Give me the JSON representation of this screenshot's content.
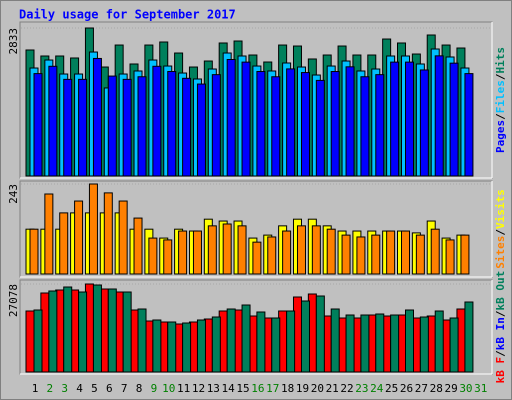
{
  "title": "Daily usage for September 2017",
  "legend_separator": "/",
  "chart_data": [
    {
      "type": "bar",
      "ylim": [
        0,
        2833
      ],
      "yticks": [
        2833
      ],
      "series": [
        {
          "name": "Hits",
          "color": "#00805c",
          "values": [
            2412,
            2297,
            2297,
            2259,
            2833,
            2086,
            2507,
            2144,
            2507,
            2565,
            2354,
            2086,
            2201,
            2546,
            2584,
            2316,
            2182,
            2507,
            2488,
            2240,
            2316,
            2488,
            2316,
            2316,
            2622,
            2546,
            2335,
            2699,
            2507,
            2450,
            null
          ]
        },
        {
          "name": "Files",
          "color": "#00c0ff",
          "values": [
            2067,
            2220,
            1952,
            1952,
            2373,
            1685,
            1952,
            2010,
            2220,
            2105,
            1971,
            1857,
            2048,
            2354,
            2297,
            2105,
            2010,
            2163,
            2086,
            1933,
            2105,
            2201,
            2010,
            2048,
            2297,
            2297,
            2144,
            2431,
            2278,
            2067,
            null
          ]
        },
        {
          "name": "Pages",
          "color": "#0000ff",
          "values": [
            1960,
            2100,
            1850,
            1850,
            2250,
            1913,
            1850,
            1900,
            2100,
            2000,
            1870,
            1760,
            1940,
            2230,
            2180,
            2000,
            1900,
            2050,
            1980,
            1830,
            2000,
            2090,
            1900,
            1940,
            2180,
            2180,
            2030,
            2300,
            2160,
            1960,
            null
          ]
        }
      ]
    },
    {
      "type": "bar",
      "ylim": [
        0,
        243
      ],
      "yticks": [
        243
      ],
      "series": [
        {
          "name": "Visits",
          "color": "#ffff00",
          "values": [
            121,
            121,
            121,
            165,
            165,
            165,
            165,
            121,
            121,
            97,
            121,
            116,
            148,
            143,
            143,
            97,
            105,
            130,
            148,
            148,
            130,
            116,
            116,
            116,
            116,
            116,
            111,
            143,
            97,
            105,
            null
          ]
        },
        {
          "name": "Sites",
          "color": "#ff8000",
          "values": [
            121,
            216,
            165,
            197,
            243,
            219,
            197,
            151,
            97,
            92,
            116,
            116,
            130,
            135,
            130,
            86,
            100,
            116,
            130,
            130,
            121,
            105,
            100,
            105,
            116,
            116,
            105,
            121,
            92,
            105,
            null
          ]
        }
      ]
    },
    {
      "type": "bar",
      "ylim": [
        0,
        27078
      ],
      "yticks": [
        27078
      ],
      "categories": [
        "1",
        "2",
        "3",
        "4",
        "5",
        "6",
        "7",
        "8",
        "9",
        "10",
        "11",
        "12",
        "13",
        "14",
        "15",
        "16",
        "17",
        "18",
        "19",
        "20",
        "21",
        "22",
        "23",
        "24",
        "25",
        "26",
        "27",
        "28",
        "29",
        "30",
        "31"
      ],
      "category_colors": [
        "#000000",
        "#008000",
        "#008000",
        "#000000",
        "#000000",
        "#000000",
        "#000000",
        "#000000",
        "#008000",
        "#008000",
        "#000000",
        "#000000",
        "#000000",
        "#000000",
        "#000000",
        "#008000",
        "#008000",
        "#000000",
        "#000000",
        "#000000",
        "#000000",
        "#000000",
        "#008000",
        "#008000",
        "#000000",
        "#000000",
        "#000000",
        "#000000",
        "#000000",
        "#008000",
        "#008000"
      ],
      "series": [
        {
          "name": "kB F",
          "color": "#ff0000",
          "values": [
            18770,
            24308,
            25231,
            25231,
            27078,
            25539,
            24616,
            19077,
            15693,
            15385,
            14770,
            15385,
            16308,
            18770,
            19077,
            17231,
            16616,
            18770,
            23078,
            24001,
            17231,
            16616,
            16616,
            17539,
            17231,
            17539,
            16616,
            17231,
            16000,
            19385,
            null
          ]
        },
        {
          "name": "kB In",
          "color": "#0000ff",
          "values": [
            null,
            null,
            null,
            null,
            null,
            null,
            null,
            null,
            null,
            null,
            null,
            null,
            null,
            null,
            null,
            null,
            null,
            null,
            null,
            null,
            null,
            null,
            null,
            null,
            null,
            null,
            null,
            null,
            null,
            null,
            null
          ]
        },
        {
          "name": "kB Out",
          "color": "#00805c",
          "values": [
            19077,
            24924,
            26155,
            24616,
            26770,
            25539,
            24616,
            19385,
            16000,
            15385,
            15077,
            16000,
            16924,
            19385,
            20616,
            18462,
            16616,
            18770,
            21847,
            23385,
            19385,
            17539,
            17539,
            17847,
            17539,
            19077,
            16924,
            18770,
            16616,
            21539,
            null
          ]
        }
      ]
    }
  ]
}
